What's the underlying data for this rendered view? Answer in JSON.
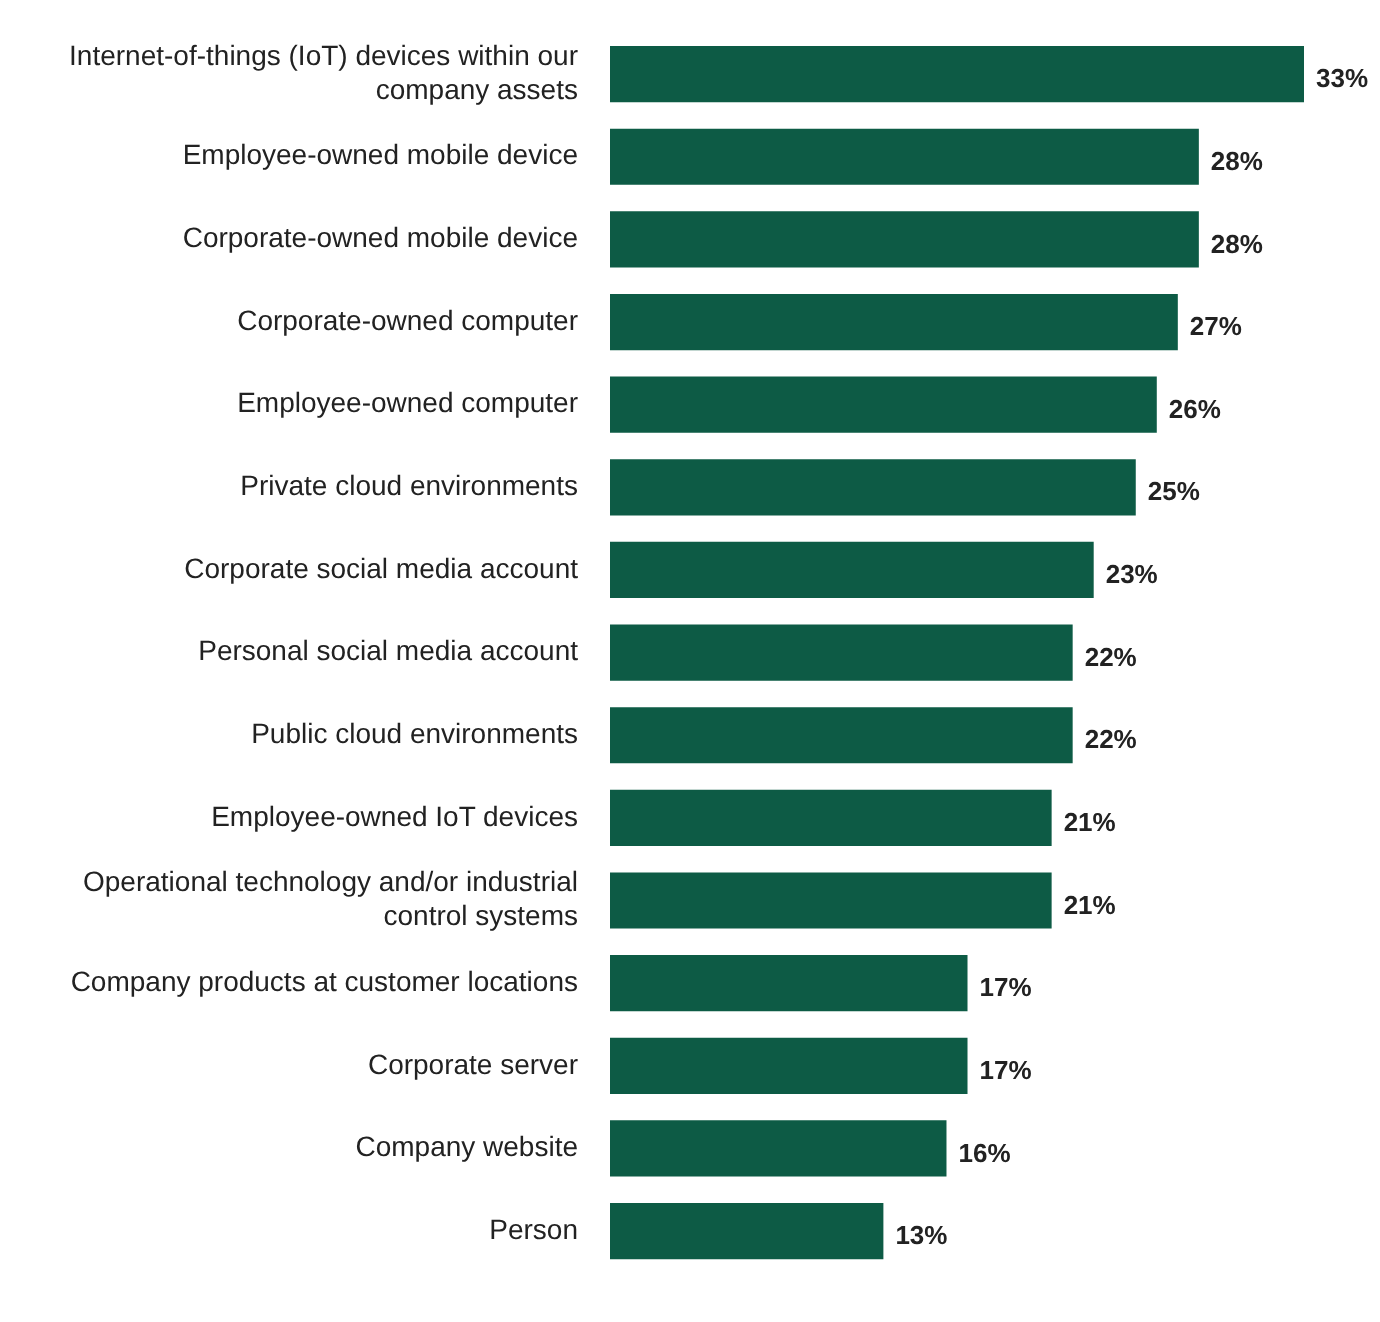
{
  "chart_data": {
    "type": "bar",
    "orientation": "horizontal",
    "categories": [
      "Internet-of-things (IoT) devices within our company assets",
      "Employee-owned mobile device",
      "Corporate-owned mobile device",
      "Corporate-owned computer",
      "Employee-owned computer",
      "Private cloud environments",
      "Corporate social media account",
      "Personal social media account",
      "Public cloud environments",
      "Employee-owned IoT devices",
      "Operational technology and/or industrial control systems",
      "Company products at customer locations",
      "Corporate server",
      "Company website",
      "Person"
    ],
    "values": [
      33,
      28,
      28,
      27,
      26,
      25,
      23,
      22,
      22,
      21,
      21,
      17,
      17,
      16,
      13
    ],
    "value_labels": [
      "33%",
      "28%",
      "28%",
      "27%",
      "26%",
      "25%",
      "23%",
      "22%",
      "22%",
      "21%",
      "21%",
      "17%",
      "17%",
      "16%",
      "13%"
    ],
    "color": "#0d5b45"
  }
}
